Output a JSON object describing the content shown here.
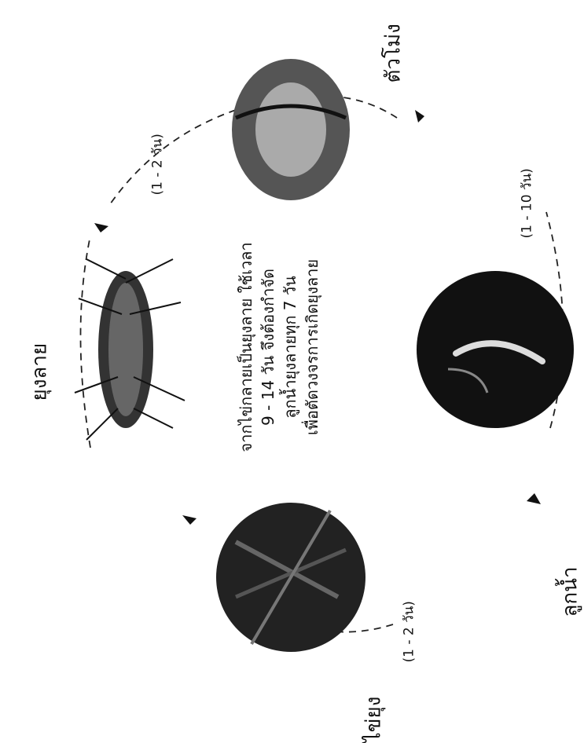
{
  "stages": {
    "adult": "ยุงลาย",
    "pupa": "ตัวโม่ง",
    "larva": "ลูกน้ำ",
    "egg": "ไข่ยุง"
  },
  "durations": {
    "adult_to_egg_top": "(1 - 2 วัน)",
    "pupa_to_larva": "(1 - 10 วัน)",
    "egg_to_larva": "(1 - 2 วัน)"
  },
  "center_text": {
    "line1": "จากไข่กลายเป็นยุงลาย ใช้เวลา",
    "line2": "9 - 14 วัน จึงต้องกำจัด",
    "line3": "ลูกน้ำยุงลายทุก 7 วัน",
    "line4": "เพื่อตัดวงจรการเกิดยุงลาย"
  },
  "icons": {
    "adult": "mosquito-photo",
    "pupa": "pupa-photo",
    "larva": "larva-photo",
    "egg": "egg-photo"
  }
}
